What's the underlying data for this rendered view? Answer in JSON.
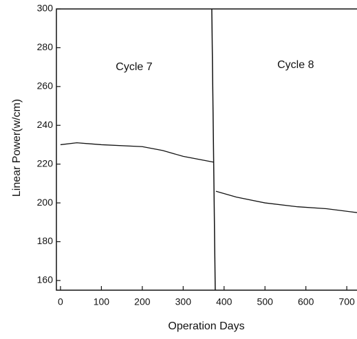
{
  "chart_data": {
    "type": "line",
    "xlabel": "Operation Days",
    "ylabel": "Linear Power(w/cm)",
    "xlim": [
      -10,
      725
    ],
    "ylim": [
      155,
      300
    ],
    "xticks": [
      0,
      100,
      200,
      300,
      400,
      500,
      600,
      700
    ],
    "yticks": [
      160,
      180,
      200,
      220,
      240,
      260,
      280,
      300
    ],
    "cycle_boundary": 375,
    "annotations": [
      {
        "text": "Cycle 7",
        "x": 180,
        "y": 270
      },
      {
        "text": "Cycle 8",
        "x": 575,
        "y": 271
      }
    ],
    "series": [
      {
        "color": "#111111",
        "x": [
          0,
          40,
          100,
          200,
          250,
          300,
          375
        ],
        "values": [
          230,
          231,
          230,
          229,
          227,
          224,
          221
        ]
      },
      {
        "color": "#111111",
        "x": [
          380,
          430,
          500,
          580,
          650,
          725
        ],
        "values": [
          206,
          203,
          200,
          198,
          197,
          195
        ]
      }
    ]
  }
}
